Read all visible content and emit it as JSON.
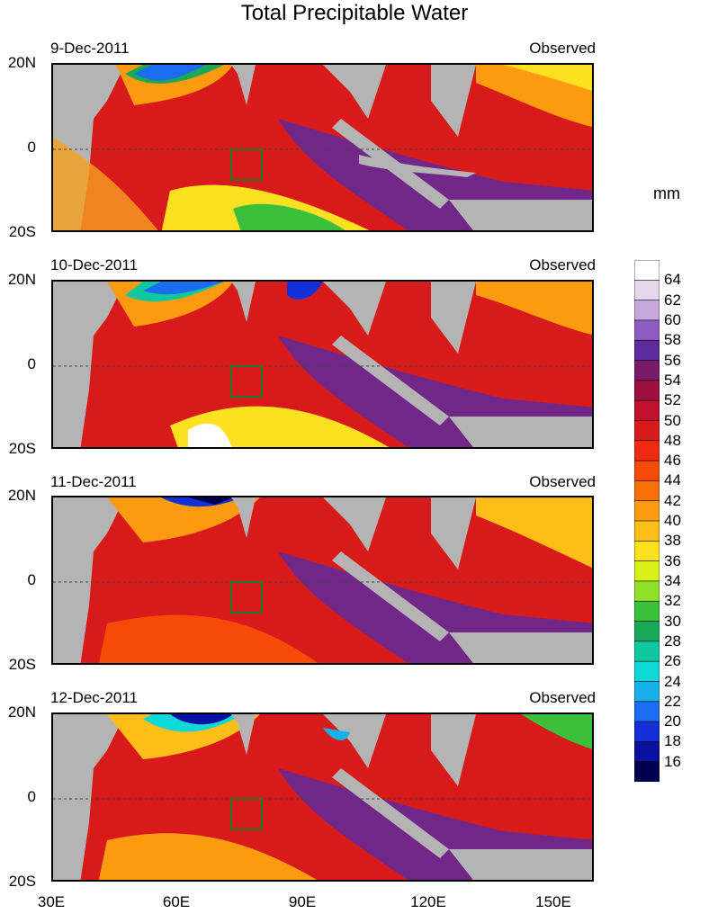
{
  "title": "Total Precipitable Water",
  "units": "mm",
  "panels": [
    {
      "date": "9-Dec-2011",
      "status": "Observed"
    },
    {
      "date": "10-Dec-2011",
      "status": "Observed"
    },
    {
      "date": "11-Dec-2011",
      "status": "Observed"
    },
    {
      "date": "12-Dec-2011",
      "status": "Observed"
    }
  ],
  "axes": {
    "lat_labels": [
      "20N",
      "0",
      "20S"
    ],
    "lon_labels": [
      "30E",
      "60E",
      "90E",
      "120E",
      "150E"
    ]
  },
  "colorbar": {
    "labels": [
      "64",
      "62",
      "60",
      "58",
      "56",
      "54",
      "52",
      "50",
      "48",
      "46",
      "44",
      "42",
      "40",
      "38",
      "36",
      "34",
      "32",
      "30",
      "28",
      "26",
      "24",
      "22",
      "20",
      "18",
      "16"
    ],
    "colors": [
      "#ffffff",
      "#e6d8ec",
      "#c8a8dc",
      "#8e5cc0",
      "#5f2a9c",
      "#7a1a6a",
      "#9c1040",
      "#c0102a",
      "#d81a1a",
      "#ee2a10",
      "#f64a08",
      "#fa7008",
      "#fc9a10",
      "#fdbe18",
      "#fde020",
      "#d8f018",
      "#8ee028",
      "#3cc03c",
      "#18a858",
      "#10c8a0",
      "#10d8d8",
      "#18b0e8",
      "#1a6cf0",
      "#1430d8",
      "#0a10a0",
      "#000050"
    ]
  }
}
